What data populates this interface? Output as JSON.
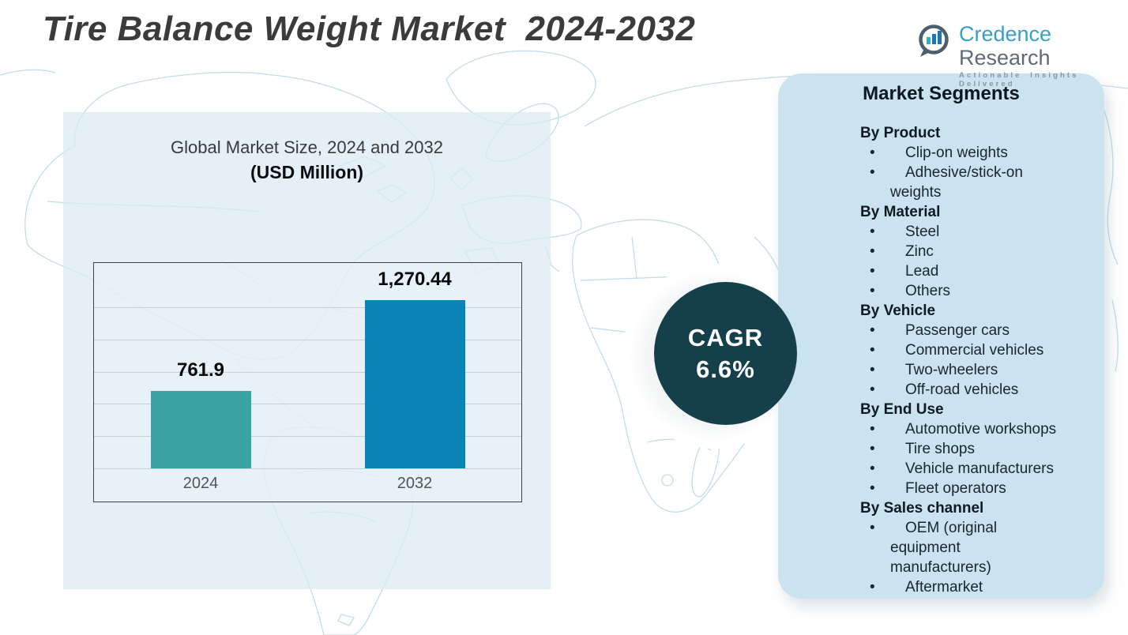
{
  "title": "Tire Balance Weight Market  2024-2032",
  "logo": {
    "brand_primary": "Credence",
    "brand_secondary": "Research",
    "tagline": "Actionable Insights Delivered"
  },
  "chart": {
    "title_line1": "Global Market Size, 2024 and 2032",
    "title_line2": "(USD Million)"
  },
  "chart_data": {
    "type": "bar",
    "title": "Global Market Size, 2024 and 2032 (USD Million)",
    "categories": [
      "2024",
      "2032"
    ],
    "values": [
      761.9,
      1270.44
    ],
    "value_labels": [
      "761.9",
      "1,270.44"
    ],
    "xlabel": "",
    "ylabel": "USD Million",
    "ylim": [
      330,
      1480
    ],
    "grid": true,
    "legend": false,
    "bar_colors": [
      "#3aa4a2",
      "#0a84b6"
    ]
  },
  "cagr": {
    "label": "CAGR",
    "value": "6.6%"
  },
  "segments": {
    "heading": "Market Segments",
    "groups": [
      {
        "title": "By Product",
        "items": [
          "Clip-on weights",
          "Adhesive/stick-on weights"
        ]
      },
      {
        "title": "By Material",
        "items": [
          "Steel",
          "Zinc",
          "Lead",
          "Others"
        ]
      },
      {
        "title": "By Vehicle",
        "items": [
          "Passenger cars",
          "Commercial vehicles",
          "Two-wheelers",
          "Off-road vehicles"
        ]
      },
      {
        "title": "By End Use",
        "items": [
          "Automotive workshops",
          "Tire shops",
          "Vehicle manufacturers",
          "Fleet operators"
        ]
      },
      {
        "title": "By Sales channel",
        "items": [
          "OEM (original equipment manufacturers)",
          "Aftermarket"
        ]
      }
    ]
  },
  "colors": {
    "bar_2024": "#3aa4a2",
    "bar_2032": "#0a84b6",
    "cagr_circle": "#163f4c",
    "segments_panel": "#cae3ef",
    "chart_backdrop": "#ddebf4",
    "map_lines": "#c2dcea",
    "title_text": "#3b3b3b"
  }
}
